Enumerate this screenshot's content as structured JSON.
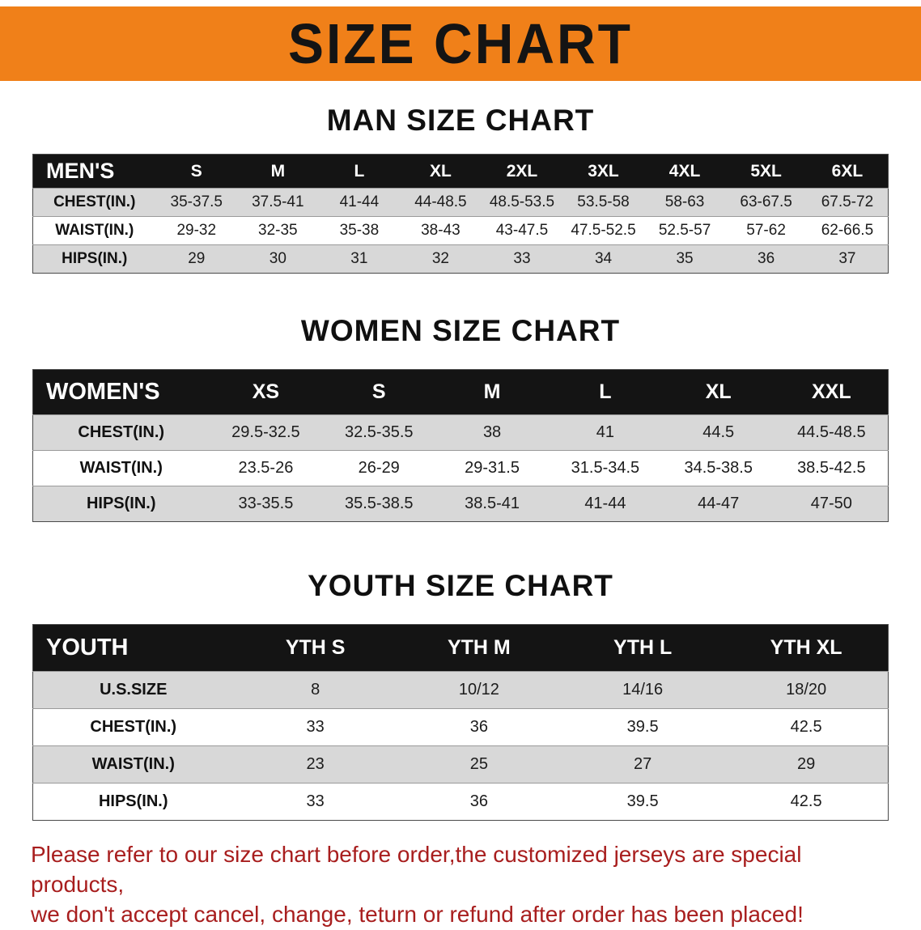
{
  "banner": {
    "title": "SIZE CHART"
  },
  "colors": {
    "banner_bg": "#f08019",
    "header_bg": "#141414",
    "row_stripe": "#d8d8d8",
    "title_text": "#141414",
    "disclaimer_red": "#a81e1e"
  },
  "sections": [
    {
      "heading": "MAN SIZE CHART",
      "table": {
        "header": [
          "MEN'S",
          "S",
          "M",
          "L",
          "XL",
          "2XL",
          "3XL",
          "4XL",
          "5XL",
          "6XL"
        ],
        "rows": [
          [
            "CHEST(IN.)",
            "35-37.5",
            "37.5-41",
            "41-44",
            "44-48.5",
            "48.5-53.5",
            "53.5-58",
            "58-63",
            "63-67.5",
            "67.5-72"
          ],
          [
            "WAIST(IN.)",
            "29-32",
            "32-35",
            "35-38",
            "38-43",
            "43-47.5",
            "47.5-52.5",
            "52.5-57",
            "57-62",
            "62-66.5"
          ],
          [
            "HIPS(IN.)",
            "29",
            "30",
            "31",
            "32",
            "33",
            "34",
            "35",
            "36",
            "37"
          ]
        ]
      }
    },
    {
      "heading": "WOMEN SIZE CHART",
      "table": {
        "header": [
          "WOMEN'S",
          "XS",
          "S",
          "M",
          "L",
          "XL",
          "XXL"
        ],
        "rows": [
          [
            "CHEST(IN.)",
            "29.5-32.5",
            "32.5-35.5",
            "38",
            "41",
            "44.5",
            "44.5-48.5"
          ],
          [
            "WAIST(IN.)",
            "23.5-26",
            "26-29",
            "29-31.5",
            "31.5-34.5",
            "34.5-38.5",
            "38.5-42.5"
          ],
          [
            "HIPS(IN.)",
            "33-35.5",
            "35.5-38.5",
            "38.5-41",
            "41-44",
            "44-47",
            "47-50"
          ]
        ]
      }
    },
    {
      "heading": "YOUTH SIZE CHART",
      "table": {
        "header": [
          "YOUTH",
          "YTH S",
          "YTH M",
          "YTH L",
          "YTH XL"
        ],
        "rows": [
          [
            "U.S.SIZE",
            "8",
            "10/12",
            "14/16",
            "18/20"
          ],
          [
            "CHEST(IN.)",
            "33",
            "36",
            "39.5",
            "42.5"
          ],
          [
            "WAIST(IN.)",
            "23",
            "25",
            "27",
            "29"
          ],
          [
            "HIPS(IN.)",
            "33",
            "36",
            "39.5",
            "42.5"
          ]
        ]
      }
    }
  ],
  "footer": {
    "lines": [
      "Please refer to our size chart before order,the customized jerseys are special products,",
      "we don't accept cancel, change, teturn or refund after order has been placed!"
    ]
  }
}
